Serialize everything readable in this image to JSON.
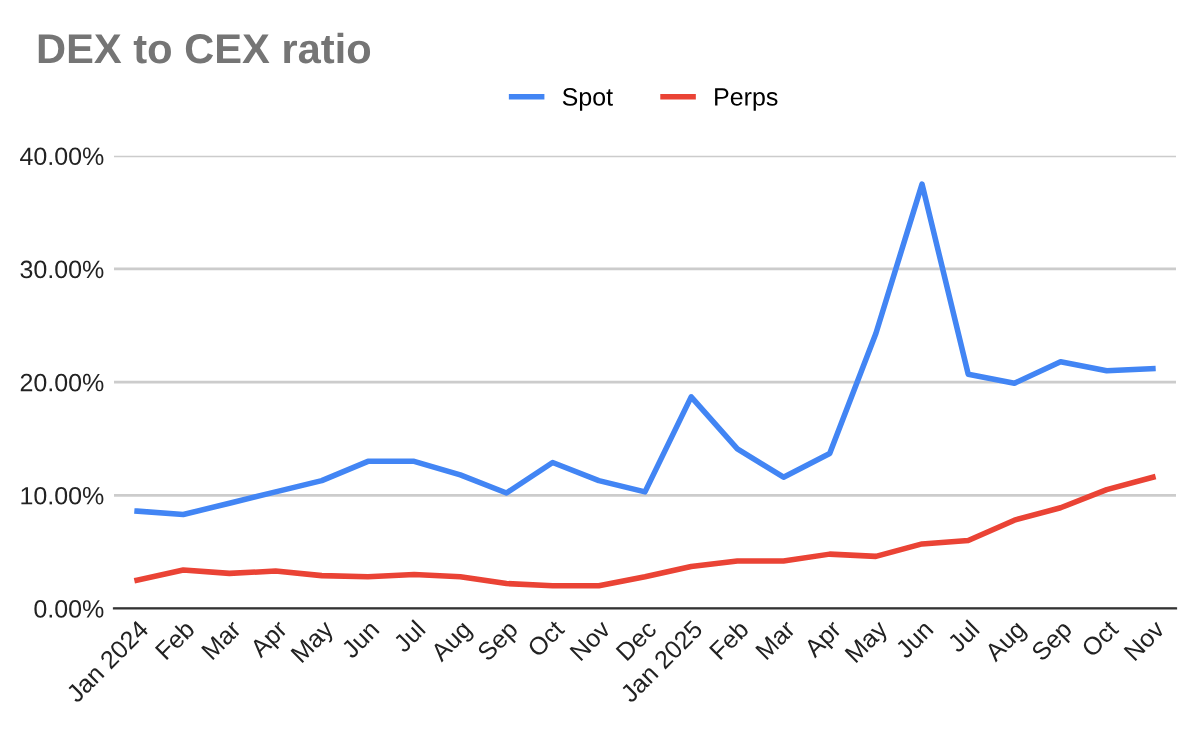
{
  "chart_data": {
    "type": "line",
    "title": "DEX to CEX ratio",
    "categories": [
      "Jan 2024",
      "Feb",
      "Mar",
      "Apr",
      "May",
      "Jun",
      "Jul",
      "Aug",
      "Sep",
      "Oct",
      "Nov",
      "Dec",
      "Jan 2025",
      "Feb",
      "Mar",
      "Apr",
      "May",
      "Jun",
      "Jul",
      "Aug",
      "Sep",
      "Oct",
      "Nov"
    ],
    "series": [
      {
        "name": "Spot",
        "color": "#4285f4",
        "values": [
          8.6,
          8.3,
          9.3,
          10.3,
          11.3,
          13.0,
          13.0,
          11.8,
          10.2,
          12.9,
          11.3,
          10.3,
          18.7,
          14.1,
          11.6,
          13.7,
          24.3,
          37.5,
          20.7,
          19.9,
          21.8,
          21.0,
          21.2
        ]
      },
      {
        "name": "Perps",
        "color": "#ea4335",
        "values": [
          2.5,
          3.4,
          3.1,
          3.3,
          2.9,
          2.8,
          3.0,
          2.8,
          2.2,
          2.0,
          2.0,
          2.8,
          3.7,
          4.2,
          4.2,
          4.8,
          4.6,
          5.7,
          6.0,
          7.8,
          8.9,
          10.5,
          11.6
        ]
      }
    ],
    "ylim": [
      0,
      40
    ],
    "yticks": [
      {
        "value": 0,
        "label": "0.00%"
      },
      {
        "value": 10,
        "label": "10.00%"
      },
      {
        "value": 20,
        "label": "20.00%"
      },
      {
        "value": 30,
        "label": "30.00%"
      },
      {
        "value": 40,
        "label": "40.00%"
      }
    ],
    "grid": "y",
    "legend": "top",
    "marker": "none",
    "line_style": "solid"
  }
}
